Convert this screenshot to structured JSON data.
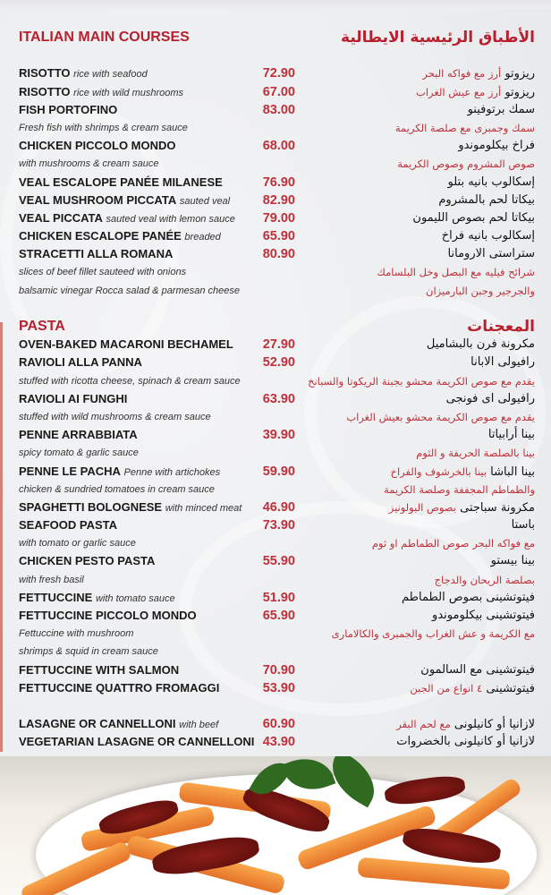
{
  "sections": [
    {
      "title_en": "ITALIAN MAIN COURSES",
      "title_ar": "الأطباق الرئيسية الايطالية",
      "rows": [
        {
          "type": "blank"
        },
        {
          "type": "item",
          "name": "RISOTTO",
          "desc": "rice with seafood",
          "price": "72.90",
          "ar_name": "ريزوتو",
          "ar_desc": "أرز مع فواكه البحر"
        },
        {
          "type": "item",
          "name": "RISOTTO",
          "desc": "rice with wild mushrooms",
          "price": "67.00",
          "ar_name": "ريزوتو",
          "ar_desc": "أرز مع عيش الغراب"
        },
        {
          "type": "item",
          "name": "FISH PORTOFINO",
          "desc": "",
          "price": "83.00",
          "ar_name": "سمك برتوفينو",
          "ar_desc": ""
        },
        {
          "type": "desc",
          "en": "Fresh fish with shrimps & cream sauce",
          "ar": "سمك وجمبرى مع صلصة الكريمة"
        },
        {
          "type": "item",
          "name": "CHICKEN PICCOLO MONDO",
          "desc": "",
          "price": "68.00",
          "ar_name": "فراخ بيكلوموندو",
          "ar_desc": ""
        },
        {
          "type": "desc",
          "en": "with mushrooms & cream sauce",
          "ar": "صوص المشروم وصوص الكريمة"
        },
        {
          "type": "item",
          "name": "VEAL ESCALOPE PANÉE MILANESE",
          "desc": "",
          "price": "76.90",
          "ar_name": "إسكالوب بانيه بتلو",
          "ar_desc": ""
        },
        {
          "type": "item",
          "name": "VEAL MUSHROOM PICCATA",
          "desc": "sauted veal",
          "price": "82.90",
          "ar_name": "بيكاتا لحم بالمشروم",
          "ar_desc": ""
        },
        {
          "type": "item",
          "name": "VEAL PICCATA",
          "desc": "sauted veal with lemon sauce",
          "price": "79.00",
          "ar_name": "بيكاتا لحم بصوص الليمون",
          "ar_desc": ""
        },
        {
          "type": "item",
          "name": "CHICKEN ESCALOPE PANÉE",
          "desc": "breaded",
          "price": "65.90",
          "ar_name": "إسكالوب بانيه فراخ",
          "ar_desc": ""
        },
        {
          "type": "item",
          "name": "STRACETTI ALLA ROMANA",
          "desc": "",
          "price": "80.90",
          "ar_name": "ستراستى الارومانا",
          "ar_desc": ""
        },
        {
          "type": "desc",
          "en": "slices of beef fillet sauteed with onions",
          "ar": "شرائح فيليه مع البصل وخل البلسامك"
        },
        {
          "type": "desc",
          "en": "balsamic vinegar Rocca salad & parmesan cheese",
          "ar": "والجرجير وجبن البارميزان"
        },
        {
          "type": "blank"
        }
      ]
    },
    {
      "title_en": "PASTA",
      "title_ar": "المعجنات",
      "rows": [
        {
          "type": "item",
          "name": "OVEN-BAKED MACARONI BECHAMEL",
          "desc": "",
          "price": "27.90",
          "ar_name": "مكرونة فرن بالبشاميل",
          "ar_desc": ""
        },
        {
          "type": "item",
          "name": "RAVIOLI ALLA PANNA",
          "desc": "",
          "price": "52.90",
          "ar_name": "رافيولى الابانا",
          "ar_desc": ""
        },
        {
          "type": "desc",
          "en": "stuffed with ricotta cheese, spinach & cream sauce",
          "ar": "يقدم مع صوص الكريمة محشو بجبنة الريكوتا والسبانخ"
        },
        {
          "type": "item",
          "name": "RAVIOLI AI FUNGHI",
          "desc": "",
          "price": "63.90",
          "ar_name": "رافيولى اى فونجى",
          "ar_desc": ""
        },
        {
          "type": "desc",
          "en": "stuffed with wild mushrooms & cream sauce",
          "ar": "يقدم مع صوص الكريمة محشو بعيش الغراب"
        },
        {
          "type": "item",
          "name": "PENNE ARRABBIATA",
          "desc": "",
          "price": "39.90",
          "ar_name": "بينا أرابياتا",
          "ar_desc": ""
        },
        {
          "type": "desc",
          "en": "spicy tomato & garlic sauce",
          "ar": "بينا بالصلصة الحريفة و الثوم"
        },
        {
          "type": "item",
          "name": "PENNE LE PACHA",
          "desc": "Penne with artichokes",
          "price": "59.90",
          "ar_name": "بينا الباشا",
          "ar_desc": "بينا بالخرشوف والفراخ"
        },
        {
          "type": "desc",
          "en": "chicken & sundried tomatoes in cream sauce",
          "ar": "والطماطم المجففة وصلصة الكريمة"
        },
        {
          "type": "item",
          "name": "SPAGHETTI BOLOGNESE",
          "desc": "with minced meat",
          "price": "46.90",
          "ar_name": "مكرونة سباجتى",
          "ar_desc": "بصوص البولونيز"
        },
        {
          "type": "item",
          "name": "SEAFOOD PASTA",
          "desc": "",
          "price": "73.90",
          "ar_name": "باستا",
          "ar_desc": ""
        },
        {
          "type": "desc",
          "en": "with tomato or garlic sauce",
          "ar": "مع فواكه البحر  صوص الطماطم او ثوم"
        },
        {
          "type": "item",
          "name": "CHICKEN PESTO PASTA",
          "desc": "",
          "price": "55.90",
          "ar_name": "بينا بيستو",
          "ar_desc": ""
        },
        {
          "type": "desc",
          "en": "with fresh basil",
          "ar": "بصلصة الريحان والدجاج"
        },
        {
          "type": "item",
          "name": "FETTUCCINE",
          "desc": "with tomato sauce",
          "price": "51.90",
          "ar_name": "فيتوتشينى بصوص الطماطم",
          "ar_desc": ""
        },
        {
          "type": "item",
          "name": "FETTUCCINE PICCOLO MONDO",
          "desc": "",
          "price": "65.90",
          "ar_name": "فيتوتشينى بيكلوموندو",
          "ar_desc": ""
        },
        {
          "type": "desc",
          "en": "Fettuccine with mushroom",
          "ar": "مع الكريمة و عش الغراب والجمبرى والكالامارى"
        },
        {
          "type": "desc",
          "en": " shrimps & squid in cream sauce",
          "ar": ""
        },
        {
          "type": "item",
          "name": "FETTUCCINE WITH SALMON",
          "desc": "",
          "price": "70.90",
          "ar_name": "فيتوتشينى مع السالمون",
          "ar_desc": ""
        },
        {
          "type": "item",
          "name": "FETTUCCINE QUATTRO FROMAGGI",
          "desc": "",
          "price": "53.90",
          "ar_name": "فيتوتشينى",
          "ar_desc": "٤ انواع من الجبن"
        },
        {
          "type": "blank"
        },
        {
          "type": "item",
          "name": "LASAGNE OR CANNELLONI",
          "desc": "with beef",
          "price": "60.90",
          "ar_name": "لازانيا أو كانيلونى",
          "ar_desc": "مع لحم البقر"
        },
        {
          "type": "item",
          "name": "VEGETARIAN LASAGNE OR CANNELLONI",
          "desc": "",
          "price": "43.90",
          "ar_name": "لازانيا أو كانيلونى بالخضروات",
          "ar_desc": ""
        }
      ]
    }
  ],
  "colors": {
    "accent": "#c0303a",
    "heading": "#b8202e",
    "text": "#1a1a1a"
  },
  "photo": {
    "subject": "penne pasta with sundried tomatoes and basil"
  }
}
